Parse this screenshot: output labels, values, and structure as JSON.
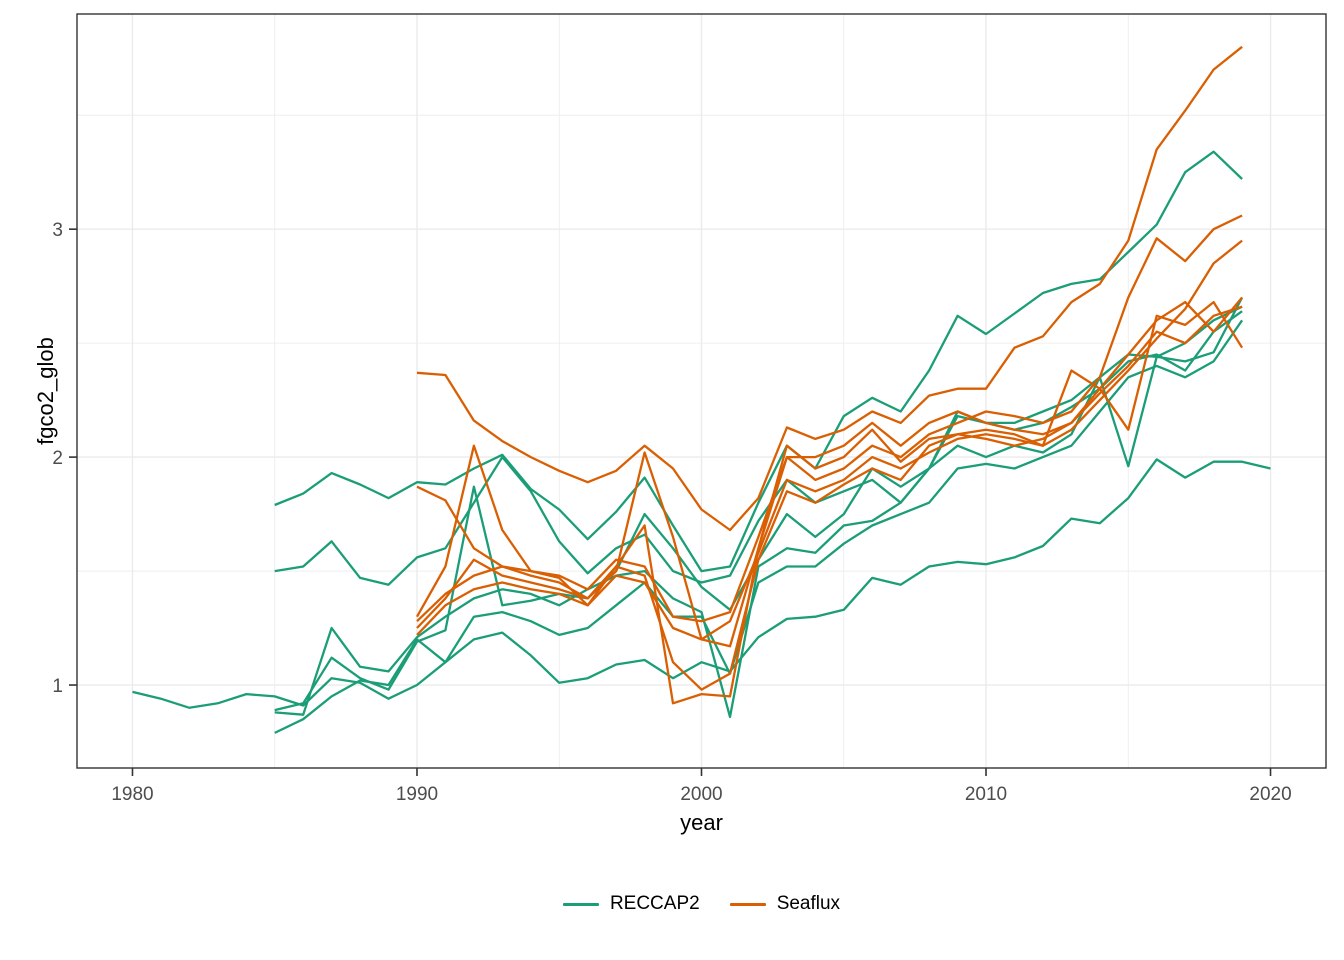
{
  "chart_data": {
    "type": "line",
    "title": "",
    "xlabel": "year",
    "ylabel": "fgco2_glob",
    "x_axis": {
      "ticks": [
        1980,
        1990,
        2000,
        2010,
        2020
      ],
      "minor_ticks": [
        1985,
        1995,
        2005,
        2015
      ],
      "range": [
        1978.05,
        2021.95
      ]
    },
    "y_axis": {
      "ticks": [
        1,
        2,
        3
      ],
      "minor_ticks": [
        1.5,
        2.5,
        3.5
      ],
      "range": [
        0.636,
        3.944
      ]
    },
    "grid": true,
    "legend": {
      "position": "bottom",
      "entries": [
        {
          "label": "RECCAP2",
          "color": "#1B9E77"
        },
        {
          "label": "Seaflux",
          "color": "#D95F02"
        }
      ]
    },
    "styles": {
      "background": "#FFFFFF",
      "panel_border": "#333333",
      "grid_color": "#EBEBEB",
      "tick_color": "#333333",
      "tick_label_color": "#4D4D4D",
      "axis_title_color": "#000000",
      "line_width": 2.3
    },
    "series": [
      {
        "id": "reccap2_1",
        "group": "RECCAP2",
        "color": "#1B9E77",
        "start_year": 1980,
        "values": [
          0.97,
          0.94,
          0.9,
          0.92,
          0.96,
          0.95,
          0.91,
          1.03,
          1.01,
          0.94,
          1.0,
          1.1,
          1.2,
          1.23,
          1.13,
          1.01,
          1.03,
          1.09,
          1.11,
          1.03,
          1.1,
          1.06,
          1.21,
          1.29,
          1.3,
          1.33,
          1.47,
          1.44,
          1.52,
          1.54,
          1.53,
          1.56,
          1.61,
          1.73,
          1.71,
          1.82,
          1.99,
          1.91,
          1.98,
          1.98,
          1.95
        ]
      },
      {
        "id": "reccap2_2",
        "group": "RECCAP2",
        "color": "#1B9E77",
        "start_year": 1985,
        "values": [
          1.79,
          1.84,
          1.93,
          1.88,
          1.82,
          1.89,
          1.88,
          1.95,
          2.01,
          1.86,
          1.77,
          1.64,
          1.76,
          1.91,
          1.7,
          1.5,
          1.52,
          1.8,
          2.05,
          1.95,
          2.18,
          2.26,
          2.2,
          2.38,
          2.62,
          2.54,
          2.63,
          2.72,
          2.76,
          2.78,
          2.9,
          3.02,
          3.25,
          3.34,
          3.22
        ]
      },
      {
        "id": "reccap2_3",
        "group": "RECCAP2",
        "color": "#1B9E77",
        "start_year": 1985,
        "values": [
          1.5,
          1.52,
          1.63,
          1.47,
          1.44,
          1.56,
          1.6,
          1.8,
          2.0,
          1.85,
          1.63,
          1.49,
          1.6,
          1.66,
          1.5,
          1.45,
          1.48,
          1.72,
          1.9,
          1.8,
          1.85,
          1.9,
          1.8,
          1.95,
          2.2,
          2.15,
          2.15,
          2.2,
          2.25,
          2.35,
          2.45,
          2.44,
          2.5,
          2.6,
          2.66
        ]
      },
      {
        "id": "reccap2_4",
        "group": "RECCAP2",
        "color": "#1B9E77",
        "start_year": 1985,
        "values": [
          0.89,
          0.92,
          1.12,
          1.03,
          0.98,
          1.19,
          1.24,
          1.87,
          1.35,
          1.37,
          1.4,
          1.38,
          1.5,
          1.75,
          1.6,
          1.43,
          1.33,
          1.55,
          1.75,
          1.65,
          1.75,
          1.95,
          1.87,
          1.95,
          2.18,
          2.15,
          2.12,
          2.15,
          2.22,
          2.3,
          2.42,
          2.45,
          2.38,
          2.55,
          2.64
        ]
      },
      {
        "id": "reccap2_5",
        "group": "RECCAP2",
        "color": "#1B9E77",
        "start_year": 1985,
        "values": [
          0.88,
          0.87,
          1.25,
          1.08,
          1.06,
          1.21,
          1.3,
          1.38,
          1.42,
          1.4,
          1.35,
          1.42,
          1.48,
          1.5,
          1.38,
          1.32,
          0.86,
          1.52,
          1.6,
          1.58,
          1.7,
          1.72,
          1.8,
          1.95,
          2.05,
          2.0,
          2.05,
          2.02,
          2.1,
          2.35,
          1.96,
          2.44,
          2.42,
          2.46,
          2.7
        ]
      },
      {
        "id": "reccap2_6",
        "group": "RECCAP2",
        "color": "#1B9E77",
        "start_year": 1985,
        "values": [
          0.79,
          0.85,
          0.95,
          1.02,
          1.0,
          1.2,
          1.1,
          1.3,
          1.32,
          1.28,
          1.22,
          1.25,
          1.35,
          1.45,
          1.3,
          1.3,
          1.05,
          1.45,
          1.52,
          1.52,
          1.62,
          1.7,
          1.75,
          1.8,
          1.95,
          1.97,
          1.95,
          2.0,
          2.05,
          2.2,
          2.35,
          2.4,
          2.35,
          2.42,
          2.6
        ]
      },
      {
        "id": "seaflux_1",
        "group": "Seaflux",
        "color": "#D95F02",
        "start_year": 1990,
        "values": [
          2.37,
          2.36,
          2.16,
          2.07,
          2.0,
          1.94,
          1.89,
          1.94,
          2.05,
          1.95,
          1.77,
          1.68,
          1.82,
          2.13,
          2.08,
          2.12,
          2.2,
          2.15,
          2.27,
          2.3,
          2.3,
          2.48,
          2.53,
          2.68,
          2.76,
          2.95,
          3.35,
          3.52,
          3.7,
          3.8
        ]
      },
      {
        "id": "seaflux_2",
        "group": "Seaflux",
        "color": "#D95F02",
        "start_year": 1990,
        "values": [
          1.87,
          1.81,
          1.6,
          1.52,
          1.48,
          1.45,
          1.38,
          1.52,
          1.7,
          0.92,
          0.96,
          0.95,
          1.6,
          2.05,
          1.95,
          2.0,
          2.12,
          1.98,
          2.08,
          2.1,
          2.12,
          2.1,
          2.05,
          2.38,
          2.3,
          2.12,
          2.62,
          2.58,
          2.68,
          2.48
        ]
      },
      {
        "id": "seaflux_3",
        "group": "Seaflux",
        "color": "#D95F02",
        "start_year": 1990,
        "values": [
          1.3,
          1.52,
          2.05,
          1.68,
          1.5,
          1.47,
          1.35,
          1.52,
          1.48,
          1.1,
          0.98,
          1.05,
          1.55,
          1.85,
          1.8,
          1.88,
          1.95,
          1.9,
          2.05,
          2.1,
          2.08,
          2.05,
          2.08,
          2.15,
          2.28,
          2.4,
          2.55,
          2.5,
          2.62,
          2.66
        ]
      },
      {
        "id": "seaflux_4",
        "group": "Seaflux",
        "color": "#D95F02",
        "start_year": 1990,
        "values": [
          1.28,
          1.4,
          1.48,
          1.52,
          1.5,
          1.48,
          1.42,
          1.55,
          1.52,
          1.3,
          1.28,
          1.32,
          1.65,
          2.0,
          1.9,
          1.95,
          2.05,
          2.0,
          2.1,
          2.15,
          2.2,
          2.18,
          2.15,
          2.2,
          2.35,
          2.7,
          2.96,
          2.86,
          3.0,
          3.06
        ]
      },
      {
        "id": "seaflux_5",
        "group": "Seaflux",
        "color": "#D95F02",
        "start_year": 1990,
        "values": [
          1.22,
          1.35,
          1.42,
          1.45,
          1.42,
          1.4,
          1.35,
          1.48,
          1.45,
          1.25,
          1.2,
          1.28,
          1.58,
          1.9,
          1.85,
          1.9,
          2.0,
          1.95,
          2.02,
          2.08,
          2.1,
          2.08,
          2.05,
          2.12,
          2.25,
          2.38,
          2.52,
          2.65,
          2.85,
          2.95
        ]
      },
      {
        "id": "seaflux_6",
        "group": "Seaflux",
        "color": "#D95F02",
        "start_year": 1990,
        "values": [
          1.25,
          1.38,
          1.55,
          1.48,
          1.45,
          1.42,
          1.38,
          1.5,
          2.02,
          1.65,
          1.2,
          1.17,
          1.6,
          2.0,
          2.0,
          2.05,
          2.15,
          2.05,
          2.15,
          2.2,
          2.15,
          2.12,
          2.1,
          2.15,
          2.3,
          2.45,
          2.6,
          2.68,
          2.55,
          2.7
        ]
      }
    ]
  }
}
